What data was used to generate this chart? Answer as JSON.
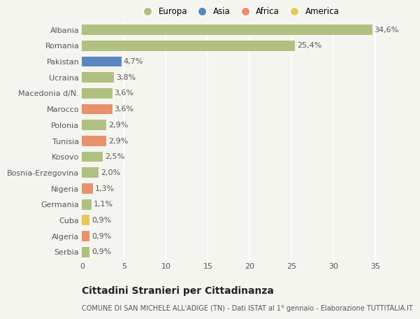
{
  "categories": [
    "Serbia",
    "Algeria",
    "Cuba",
    "Germania",
    "Nigeria",
    "Bosnia-Erzegovina",
    "Kosovo",
    "Tunisia",
    "Polonia",
    "Marocco",
    "Macedonia d/N.",
    "Ucraina",
    "Pakistan",
    "Romania",
    "Albania"
  ],
  "values": [
    0.9,
    0.9,
    0.9,
    1.1,
    1.3,
    2.0,
    2.5,
    2.9,
    2.9,
    3.6,
    3.6,
    3.8,
    4.7,
    25.4,
    34.6
  ],
  "labels": [
    "0,9%",
    "0,9%",
    "0,9%",
    "1,1%",
    "1,3%",
    "2,0%",
    "2,5%",
    "2,9%",
    "2,9%",
    "3,6%",
    "3,6%",
    "3,8%",
    "4,7%",
    "25,4%",
    "34,6%"
  ],
  "colors": [
    "#afc180",
    "#e8916a",
    "#e8c858",
    "#afc180",
    "#e8916a",
    "#afc180",
    "#afc180",
    "#e8916a",
    "#afc180",
    "#e8916a",
    "#afc180",
    "#afc180",
    "#5b87c0",
    "#afc180",
    "#afc180"
  ],
  "legend_labels": [
    "Europa",
    "Asia",
    "Africa",
    "America"
  ],
  "legend_colors": [
    "#afc180",
    "#5b87c0",
    "#e8916a",
    "#e8c858"
  ],
  "title": "Cittadini Stranieri per Cittadinanza",
  "subtitle": "COMUNE DI SAN MICHELE ALL'ADIGE (TN) - Dati ISTAT al 1° gennaio - Elaborazione TUTTITALIA.IT",
  "xlim": [
    0,
    37.5
  ],
  "xticks": [
    0,
    5,
    10,
    15,
    20,
    25,
    30,
    35
  ],
  "bg_color": "#f5f5f0",
  "bar_height": 0.65,
  "grid_color": "#ffffff",
  "label_fontsize": 8,
  "tick_fontsize": 8,
  "title_fontsize": 10,
  "subtitle_fontsize": 7
}
